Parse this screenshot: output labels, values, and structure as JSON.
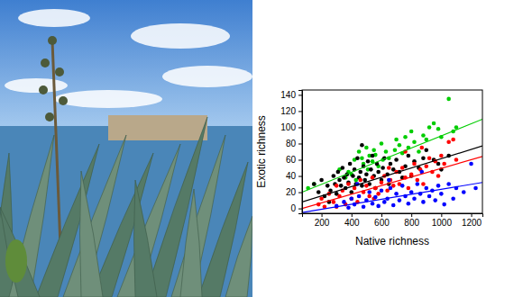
{
  "chart_data": {
    "type": "scatter",
    "x_label": "Native richness",
    "y_label": "Exotic richness",
    "xlim": [
      70,
      1275
    ],
    "ylim": [
      -6,
      146
    ],
    "xticks": [
      200,
      400,
      600,
      800,
      1000,
      1200
    ],
    "yticks": [
      0,
      20,
      40,
      60,
      80,
      100,
      120,
      140
    ],
    "series": [
      {
        "color": "#00cd00",
        "marker": "circle",
        "x": [
          110,
          150,
          320,
          380,
          400,
          420,
          450,
          470,
          480,
          500,
          510,
          520,
          540,
          550,
          560,
          580,
          600,
          610,
          630,
          650,
          700,
          720,
          740,
          760,
          780,
          800,
          820,
          850,
          880,
          900,
          920,
          950,
          980,
          1000,
          1050,
          1080,
          1100,
          430,
          360,
          690
        ],
        "values": [
          25,
          30,
          48,
          45,
          42,
          60,
          70,
          62,
          55,
          75,
          48,
          65,
          58,
          72,
          66,
          52,
          80,
          60,
          70,
          62,
          85,
          78,
          68,
          88,
          75,
          95,
          82,
          70,
          90,
          85,
          100,
          105,
          98,
          88,
          135,
          95,
          100,
          35,
          38,
          72
        ],
        "fit": {
          "x": [
            70,
            1275
          ],
          "y": [
            20,
            110
          ]
        }
      },
      {
        "color": "#000000",
        "marker": "circle",
        "x": [
          150,
          180,
          200,
          220,
          240,
          260,
          280,
          290,
          300,
          310,
          320,
          330,
          340,
          350,
          360,
          370,
          380,
          390,
          400,
          410,
          420,
          430,
          440,
          450,
          460,
          470,
          480,
          490,
          500,
          510,
          520,
          530,
          540,
          550,
          560,
          570,
          580,
          600,
          610,
          620,
          640,
          650,
          660,
          680,
          700,
          720,
          740,
          760,
          780,
          800,
          820,
          850,
          880,
          900,
          950,
          980,
          1000,
          1050,
          250,
          470
        ],
        "values": [
          30,
          20,
          35,
          15,
          28,
          22,
          40,
          30,
          18,
          45,
          35,
          28,
          50,
          38,
          25,
          42,
          32,
          55,
          20,
          40,
          48,
          30,
          62,
          38,
          45,
          28,
          52,
          35,
          42,
          58,
          30,
          48,
          65,
          40,
          25,
          55,
          45,
          35,
          50,
          62,
          42,
          30,
          55,
          48,
          60,
          45,
          38,
          52,
          65,
          40,
          58,
          50,
          62,
          72,
          60,
          55,
          48,
          65,
          8,
          78
        ],
        "fit": {
          "x": [
            70,
            1275
          ],
          "y": [
            8,
            77
          ]
        }
      },
      {
        "color": "#ff0000",
        "marker": "circle",
        "x": [
          180,
          200,
          220,
          250,
          280,
          300,
          320,
          340,
          360,
          380,
          400,
          420,
          440,
          460,
          480,
          500,
          520,
          540,
          560,
          580,
          600,
          620,
          640,
          660,
          680,
          700,
          720,
          740,
          760,
          780,
          800,
          820,
          840,
          860,
          880,
          900,
          920,
          940,
          960,
          980,
          1000,
          1020,
          1050,
          1080,
          1100,
          650,
          550,
          760,
          300,
          870
        ],
        "values": [
          5,
          12,
          2,
          18,
          8,
          28,
          15,
          22,
          5,
          30,
          12,
          25,
          8,
          35,
          20,
          28,
          15,
          38,
          25,
          18,
          32,
          40,
          22,
          35,
          28,
          45,
          30,
          50,
          38,
          25,
          42,
          55,
          35,
          48,
          30,
          52,
          62,
          45,
          58,
          40,
          65,
          55,
          82,
          85,
          60,
          50,
          12,
          70,
          2,
          75
        ],
        "fit": {
          "x": [
            70,
            1275
          ],
          "y": [
            0,
            64
          ]
        }
      },
      {
        "color": "#0000ff",
        "marker": "circle",
        "x": [
          300,
          350,
          380,
          400,
          420,
          450,
          480,
          500,
          520,
          540,
          560,
          580,
          600,
          620,
          640,
          660,
          680,
          700,
          720,
          740,
          760,
          780,
          800,
          820,
          840,
          860,
          880,
          900,
          920,
          940,
          960,
          980,
          1000,
          1020,
          1050,
          1080,
          1100,
          1150,
          1200,
          1230,
          650,
          870,
          440
        ],
        "values": [
          3,
          8,
          1,
          12,
          5,
          15,
          2,
          10,
          20,
          6,
          14,
          3,
          22,
          8,
          12,
          25,
          4,
          18,
          10,
          28,
          15,
          6,
          20,
          12,
          30,
          18,
          8,
          25,
          15,
          22,
          10,
          28,
          18,
          5,
          30,
          12,
          25,
          20,
          55,
          25,
          35,
          45,
          30
        ],
        "fit": {
          "x": [
            70,
            1275
          ],
          "y": [
            -5,
            32
          ]
        }
      }
    ]
  }
}
